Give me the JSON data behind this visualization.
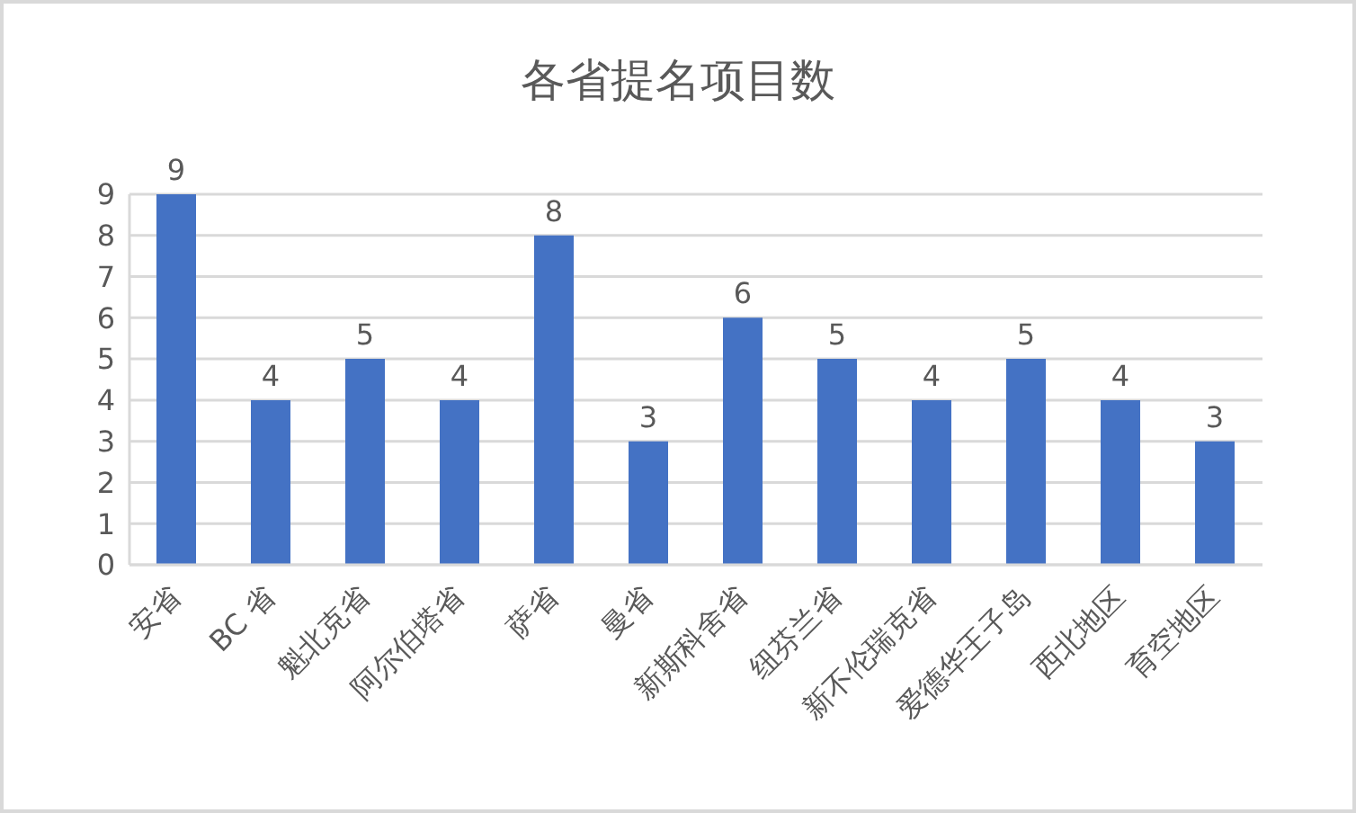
{
  "chart_data": {
    "type": "bar",
    "title": "各省提名项目数",
    "categories": [
      "安省",
      "BC 省",
      "魁北克省",
      "阿尔伯塔省",
      "萨省",
      "曼省",
      "新斯科舍省",
      "纽芬兰省",
      "新不伦瑞克省",
      "爱德华王子岛",
      "西北地区",
      "育空地区"
    ],
    "values": [
      9,
      4,
      5,
      4,
      8,
      3,
      6,
      5,
      4,
      5,
      4,
      3
    ],
    "color": "#4472c4",
    "ylim": [
      0,
      9
    ],
    "yticks": [
      0,
      1,
      2,
      3,
      4,
      5,
      6,
      7,
      8,
      9
    ],
    "grid": "y",
    "data_labels": true
  }
}
